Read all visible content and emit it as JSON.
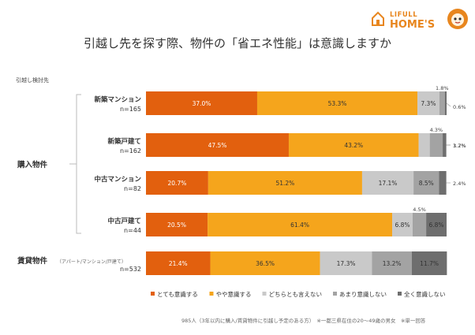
{
  "brand": {
    "top": "LIFULL",
    "main": "HOME'S",
    "color": "#e8861e"
  },
  "title": "引越し先を探す際、物件の「省エネ性能」は意識しますか",
  "footnote": "985人（3年以内に購入/賃貸物件に引越し予定のある方）　※一都三県在住の20～49歳の男女　※単一回答",
  "chart_data": {
    "type": "bar",
    "orientation": "horizontal",
    "stacked": true,
    "percent_stacked": true,
    "header_label": "引越し検討先",
    "groups": [
      {
        "label": "購入物件",
        "rows": [
          0,
          1,
          2,
          3
        ]
      },
      {
        "label": "賃貸物件",
        "sublabel": "（アパート/マンション/戸建て）",
        "rows": [
          4
        ]
      }
    ],
    "categories": [
      {
        "name": "新築マンション",
        "n": "n=165"
      },
      {
        "name": "新築戸建て",
        "n": "n=162"
      },
      {
        "name": "中古マンション",
        "n": "n=82"
      },
      {
        "name": "中古戸建て",
        "n": "n=44"
      },
      {
        "name": "",
        "n": "n=532"
      }
    ],
    "series": [
      {
        "name": "とても意識する",
        "color": "#e2600e",
        "label_color": "#ffffff",
        "values": [
          37.0,
          47.5,
          20.7,
          20.5,
          21.4
        ]
      },
      {
        "name": "やや意識する",
        "color": "#f5a51c",
        "label_color": "#333333",
        "values": [
          53.3,
          43.2,
          51.2,
          61.4,
          36.5
        ]
      },
      {
        "name": "どちらとも言えない",
        "color": "#c9c9c9",
        "label_color": "#333333",
        "values": [
          7.3,
          3.7,
          17.1,
          6.8,
          17.3
        ]
      },
      {
        "name": "あまり意識しない",
        "color": "#a3a3a3",
        "label_color": "#333333",
        "values": [
          1.8,
          4.3,
          8.5,
          4.5,
          13.2
        ]
      },
      {
        "name": "全く意識しない",
        "color": "#6e6e6e",
        "label_color": "#333333",
        "values": [
          0.6,
          1.2,
          2.4,
          6.8,
          11.7
        ]
      }
    ],
    "labels": [
      [
        "37.0%",
        "53.3%",
        "7.3%",
        "1.8%",
        "0.6%"
      ],
      [
        "47.5%",
        "43.2%",
        "3.7%",
        "4.3%",
        "1.2%"
      ],
      [
        "20.7%",
        "51.2%",
        "17.1%",
        "8.5%",
        "2.4%"
      ],
      [
        "20.5%",
        "61.4%",
        "6.8%",
        "4.5%",
        "6.8%"
      ],
      [
        "21.4%",
        "36.5%",
        "17.3%",
        "13.2%",
        "11.7%"
      ]
    ],
    "xlim": [
      0,
      100
    ],
    "grid": false,
    "legend_position": "bottom"
  }
}
